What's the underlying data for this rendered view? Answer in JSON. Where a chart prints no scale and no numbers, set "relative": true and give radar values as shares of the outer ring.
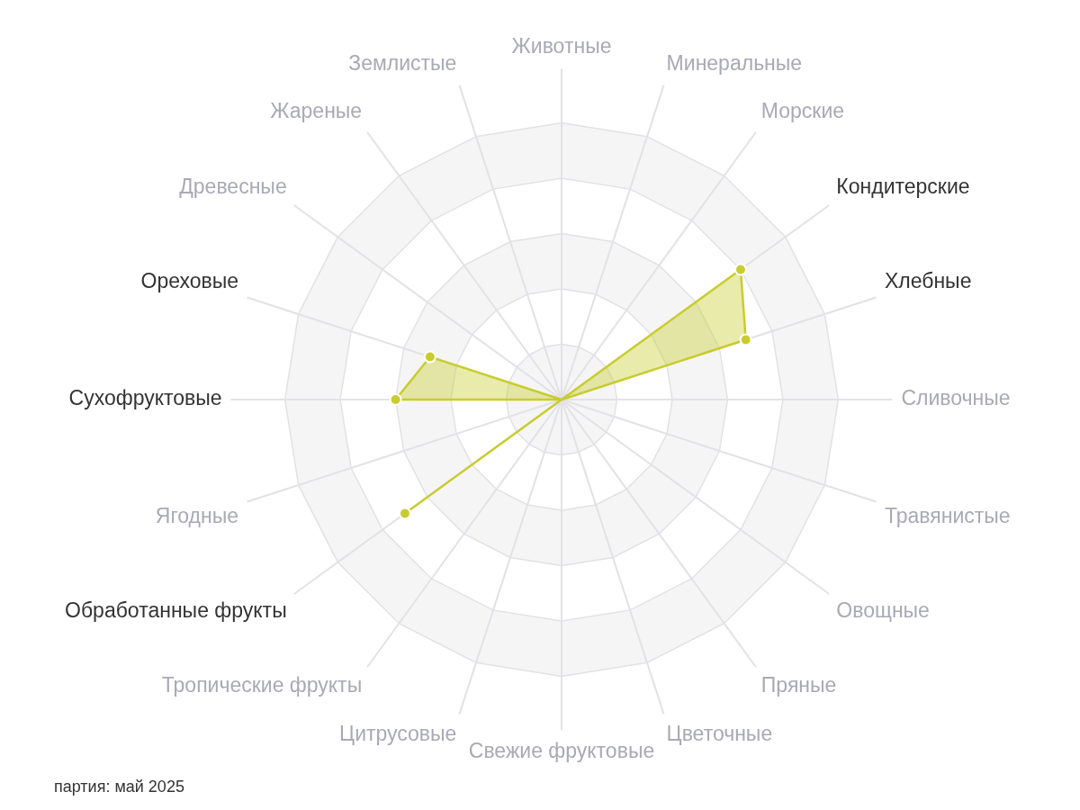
{
  "chart_data": {
    "type": "radar",
    "relative": true,
    "grid": true,
    "legend": false,
    "marker": "circle",
    "categories": [
      "Животные",
      "Минеральные",
      "Морские",
      "Кондитерские",
      "Хлебные",
      "Сливочные",
      "Травянистые",
      "Овощные",
      "Пряные",
      "Цветочные",
      "Свежие фруктовые",
      "Цитрусовые",
      "Тропические фрукты",
      "Обработанные фрукты",
      "Ягодные",
      "Сухофруктовые",
      "Ореховые",
      "Древесные",
      "Жареные",
      "Землистые"
    ],
    "series": [
      {
        "color": "#c9cc2e",
        "values": [
          0,
          0,
          0,
          0.8,
          0.7,
          0,
          0,
          0,
          0,
          0,
          0,
          0,
          0,
          0.7,
          0,
          0.6,
          0.5,
          0,
          0,
          0
        ]
      }
    ],
    "annotations": [
      "партия: май 2025"
    ]
  }
}
